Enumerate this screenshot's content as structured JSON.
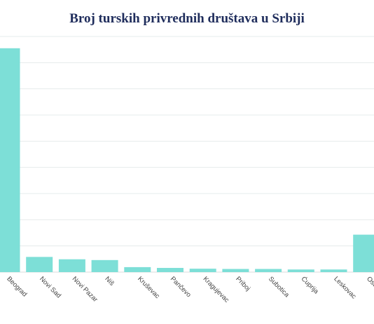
{
  "chart_data": {
    "type": "bar",
    "title": "Broj turskih privrednih društava u Srbiji",
    "categories": [
      "Beograd",
      "Novi Sad",
      "Novi Pazar",
      "Niš",
      "Kruševac",
      "Pančevo",
      "Kragujevac",
      "Priboj",
      "Subotica",
      "Ćuprija",
      "Leskovac",
      "Ostalo"
    ],
    "values": [
      855,
      58,
      49,
      46,
      19,
      16,
      13,
      12,
      12,
      10,
      10,
      143
    ],
    "ylim": [
      0,
      900
    ],
    "grid": true,
    "bar_color": "#7ddfd7",
    "grid_color": "#e6ecec"
  }
}
